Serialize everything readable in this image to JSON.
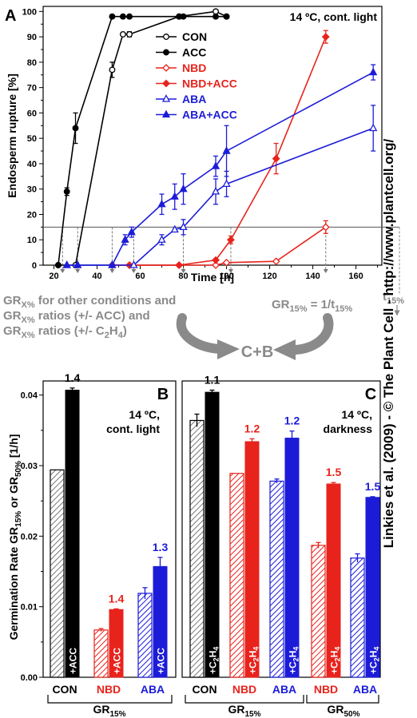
{
  "credit": "Linkies et al. (2009) - © The Plant Cell - http://www.plantcell.org/",
  "colors": {
    "black": "#000000",
    "red": "#e8231c",
    "blue": "#1c1cd8",
    "gray": "#8a8a8a",
    "hatch_gray": "#ffffff"
  },
  "chart_data": [
    {
      "panel": "A",
      "type": "line",
      "title": "14 ºC, cont. light",
      "xlabel": "Time [h]",
      "ylabel": "Endosperm rupture [%]",
      "xlim": [
        15,
        172
      ],
      "ylim": [
        0,
        102
      ],
      "xticks": [
        20,
        40,
        60,
        80,
        100,
        120,
        140,
        160
      ],
      "yticks": [
        0,
        10,
        20,
        30,
        40,
        50,
        60,
        70,
        80,
        90,
        100
      ],
      "threshold_line": 15,
      "threshold_label": "t",
      "threshold_sub": "15%",
      "legend": "top-right",
      "series": [
        {
          "name": "CON",
          "color": "#000000",
          "marker": "circle",
          "filled": false,
          "x": [
            22,
            30,
            47,
            52,
            55,
            78,
            95,
            100
          ],
          "y": [
            0,
            0,
            77,
            91,
            91,
            98,
            100,
            98
          ],
          "err": [
            0,
            0,
            3,
            0,
            1,
            0,
            0,
            0
          ]
        },
        {
          "name": "ACC",
          "color": "#000000",
          "marker": "circle",
          "filled": true,
          "x": [
            22,
            26,
            30,
            47,
            52,
            55,
            78,
            80,
            95,
            100
          ],
          "y": [
            0,
            29,
            54,
            98,
            98,
            98,
            98,
            98,
            98,
            98
          ],
          "err": [
            0,
            1.5,
            6,
            0,
            0,
            0,
            0,
            0,
            0,
            0
          ]
        },
        {
          "name": "NBD",
          "color": "#e8231c",
          "marker": "diamond",
          "filled": false,
          "x": [
            47,
            55,
            78,
            95,
            100,
            123,
            146
          ],
          "y": [
            0,
            0,
            0,
            0,
            1,
            1.5,
            15
          ],
          "err": [
            0,
            0,
            0,
            0,
            0,
            0,
            2.5
          ]
        },
        {
          "name": "NBD+ACC",
          "color": "#e8231c",
          "marker": "diamond",
          "filled": true,
          "x": [
            47,
            55,
            78,
            95,
            102,
            123,
            146
          ],
          "y": [
            0,
            0,
            0,
            2,
            10,
            42,
            90
          ],
          "err": [
            0,
            0,
            0,
            0,
            1.5,
            6,
            2.5
          ]
        },
        {
          "name": "ABA",
          "color": "#1c1cd8",
          "marker": "triangle",
          "filled": false,
          "x": [
            26,
            31,
            47,
            57,
            70,
            76,
            80,
            95,
            100,
            168
          ],
          "y": [
            0,
            0,
            0,
            0,
            10,
            14,
            15,
            29,
            32,
            54
          ],
          "err": [
            0,
            0,
            0,
            0,
            2,
            0,
            3,
            5,
            5,
            9
          ]
        },
        {
          "name": "ABA+ACC",
          "color": "#1c1cd8",
          "marker": "triangle",
          "filled": true,
          "x": [
            26,
            31,
            47,
            53,
            56,
            70,
            76,
            80,
            95,
            100,
            168
          ],
          "y": [
            0,
            0,
            0,
            10,
            13,
            24,
            27,
            30,
            39,
            45,
            76
          ],
          "err": [
            0,
            0,
            0,
            2,
            2,
            4,
            5,
            6,
            4,
            10,
            3
          ]
        }
      ],
      "t15_marks": [
        24,
        31,
        47,
        57,
        80,
        102,
        146
      ],
      "t15_black_marks": [
        26,
        30
      ],
      "t15_label": "t",
      "t15_sub": "15%"
    },
    {
      "panel": "annotation",
      "left_lines": [
        [
          [
            "GR",
            ""
          ],
          [
            "X%",
            "sub"
          ],
          [
            " for other conditions and",
            ""
          ]
        ],
        [
          [
            "GR",
            ""
          ],
          [
            "X%",
            "sub"
          ],
          [
            " ratios (+/- ACC) and",
            ""
          ]
        ],
        [
          [
            "GR",
            ""
          ],
          [
            "X%",
            "sub"
          ],
          [
            " ratios (+/- C",
            ""
          ],
          [
            "2",
            "sub"
          ],
          [
            "H",
            ""
          ],
          [
            "4",
            "sub"
          ],
          [
            ")",
            ""
          ]
        ]
      ],
      "right_line": [
        [
          "GR",
          ""
        ],
        [
          "15%",
          "sub"
        ],
        [
          " = 1/t",
          ""
        ],
        [
          "15%",
          "sub"
        ]
      ],
      "center": "C+B"
    },
    {
      "panel": "B",
      "type": "bar",
      "title_lines": [
        "14 ºC,",
        "cont. light"
      ],
      "ylabel": "Germination Rate GR15% or GR50% [1/h]",
      "ylabel_parts": [
        [
          "Germination Rate GR",
          ""
        ],
        [
          "15%",
          "sub"
        ],
        [
          " or GR",
          ""
        ],
        [
          "50%",
          "sub"
        ],
        [
          " [1/h]",
          ""
        ]
      ],
      "ylim": [
        0,
        0.042
      ],
      "yticks": [
        "0.00",
        "0.01",
        "0.02",
        "0.03",
        "0.04"
      ],
      "categories": [
        "CON",
        "NBD",
        "ABA"
      ],
      "category_colors": [
        "#000000",
        "#e8231c",
        "#1c1cd8"
      ],
      "group_label": "GR",
      "group_sub": "15%",
      "series": [
        {
          "name": "control",
          "values": [
            0.0294,
            0.0067,
            0.0119
          ],
          "err": [
            0,
            0.0002,
            0.0008
          ],
          "hatched": true
        },
        {
          "name": "+ACC",
          "values": [
            0.0407,
            0.0096,
            0.0157
          ],
          "err": [
            0.0003,
            0.0001,
            0.0013
          ],
          "hatched": false
        }
      ],
      "bar_label": "+ACC",
      "ratios": [
        "1.4",
        "1.4",
        "1.3"
      ]
    },
    {
      "panel": "C",
      "type": "bar",
      "title_lines": [
        "14 ºC,",
        "darkness"
      ],
      "ylim": [
        0,
        0.042
      ],
      "categories": [
        "CON",
        "NBD",
        "ABA",
        "NBD",
        "ABA"
      ],
      "category_colors": [
        "#000000",
        "#e8231c",
        "#1c1cd8",
        "#e8231c",
        "#1c1cd8"
      ],
      "groups": [
        {
          "label": "GR",
          "sub": "15%",
          "span": [
            0,
            2
          ]
        },
        {
          "label": "GR",
          "sub": "50%",
          "span": [
            3,
            4
          ]
        }
      ],
      "series": [
        {
          "name": "control",
          "values": [
            0.0364,
            0.0289,
            0.0278,
            0.0187,
            0.0169
          ],
          "err": [
            0.0009,
            0,
            0.0003,
            0.0004,
            0.0006
          ],
          "hatched": true
        },
        {
          "name": "+C2H4",
          "values": [
            0.0404,
            0.0334,
            0.0339,
            0.0274,
            0.0255
          ],
          "err": [
            0.0003,
            0.0004,
            0.001,
            0.0002,
            0.0001
          ],
          "hatched": false
        }
      ],
      "bar_label": "+C2H4",
      "bar_label_parts": [
        [
          "+C",
          ""
        ],
        [
          "2",
          "sub"
        ],
        [
          "H",
          ""
        ],
        [
          "4",
          "sub"
        ]
      ],
      "ratios": [
        "1.1",
        "1.2",
        "1.2",
        "1.5",
        "1.5"
      ]
    }
  ]
}
